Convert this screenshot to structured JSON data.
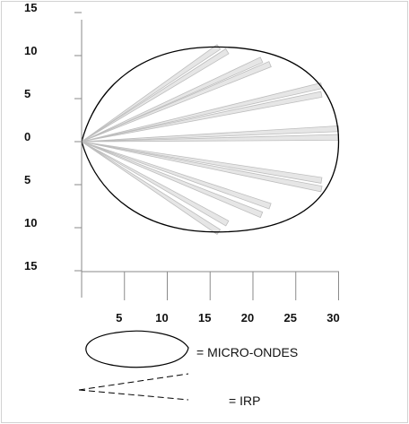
{
  "y_ticks": [
    {
      "value": 15,
      "label": "15"
    },
    {
      "value": 10,
      "label": "10"
    },
    {
      "value": 5,
      "label": "5"
    },
    {
      "value": 0,
      "label": "0"
    },
    {
      "value": -5,
      "label": "5"
    },
    {
      "value": -10,
      "label": "10"
    },
    {
      "value": -15,
      "label": "15"
    }
  ],
  "x_ticks": [
    {
      "value": 5,
      "label": "5"
    },
    {
      "value": 10,
      "label": "10"
    },
    {
      "value": 15,
      "label": "15"
    },
    {
      "value": 20,
      "label": "20"
    },
    {
      "value": 25,
      "label": "25"
    },
    {
      "value": 30,
      "label": "30"
    }
  ],
  "pattern_extent": {
    "x_max": 30,
    "y_min": -10.5,
    "y_max": 11
  },
  "ir_beam_ends": [
    [
      16,
      11
    ],
    [
      17,
      10.5
    ],
    [
      21,
      9.5
    ],
    [
      22,
      9
    ],
    [
      28,
      6.5
    ],
    [
      28,
      5.5
    ],
    [
      30,
      1.5
    ],
    [
      30,
      0.5
    ],
    [
      28,
      -4.5
    ],
    [
      28,
      -5.5
    ],
    [
      22,
      -7.5
    ],
    [
      21,
      -8.5
    ],
    [
      17,
      -9.5
    ],
    [
      16,
      -10.5
    ]
  ],
  "legend": {
    "microwave_label": "= MICRO-ONDES",
    "ir_label": "= IRP"
  },
  "colors": {
    "outline": "#000000",
    "beam_fill": "#e6e6e6",
    "beam_stroke": "#bdbdbd",
    "axis": "#8a8a8a"
  }
}
